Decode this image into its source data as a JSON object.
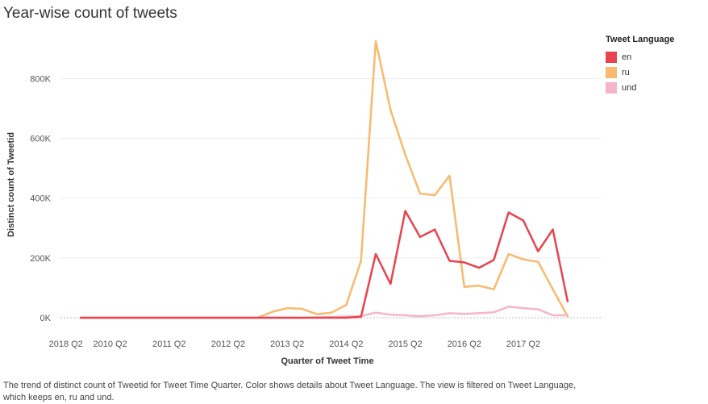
{
  "title": "Year-wise count of tweets",
  "caption": "The trend of distinct count of Tweetid for Tweet Time Quarter.  Color shows details about Tweet Language. The view is filtered on Tweet Language, which keeps en, ru and und.",
  "legend": {
    "title": "Tweet Language",
    "items": [
      {
        "label": "en",
        "color": "#e8434f"
      },
      {
        "label": "ru",
        "color": "#f9b96e"
      },
      {
        "label": "und",
        "color": "#f6b4cb"
      }
    ]
  },
  "chart_data": {
    "type": "line",
    "title": "Year-wise count of tweets",
    "xlabel": "Quarter of Tweet Time",
    "ylabel": "Distinct count of Tweetid",
    "x_tick_labels": [
      "2010 Q2",
      "2011 Q2",
      "2012 Q2",
      "2013 Q2",
      "2014 Q2",
      "2015 Q2",
      "2016 Q2",
      "2017 Q2",
      "2018 Q2"
    ],
    "y_tick_labels": [
      "0K",
      "200K",
      "400K",
      "600K",
      "800K"
    ],
    "ylim": [
      0,
      960000
    ],
    "grid": true,
    "legend_position": "top-right",
    "x": [
      "2009 Q4",
      "2010 Q1",
      "2010 Q2",
      "2010 Q3",
      "2010 Q4",
      "2011 Q1",
      "2011 Q2",
      "2011 Q3",
      "2011 Q4",
      "2012 Q1",
      "2012 Q2",
      "2012 Q3",
      "2012 Q4",
      "2013 Q1",
      "2013 Q2",
      "2013 Q3",
      "2013 Q4",
      "2014 Q1",
      "2014 Q2",
      "2014 Q3",
      "2014 Q4",
      "2015 Q1",
      "2015 Q2",
      "2015 Q3",
      "2015 Q4",
      "2016 Q1",
      "2016 Q2",
      "2016 Q3",
      "2016 Q4",
      "2017 Q1",
      "2017 Q2",
      "2017 Q3",
      "2017 Q4",
      "2018 Q1"
    ],
    "series": [
      {
        "name": "ru",
        "color": "#f9b96e",
        "values": [
          0,
          0,
          0,
          0,
          0,
          0,
          0,
          0,
          0,
          0,
          0,
          0,
          0,
          20000,
          32000,
          30000,
          12000,
          17000,
          43000,
          190000,
          925000,
          695000,
          545000,
          415000,
          410000,
          475000,
          103000,
          107000,
          95000,
          213000,
          195000,
          187000,
          95000,
          5000
        ]
      },
      {
        "name": "und",
        "color": "#f6b4cb",
        "values": [
          0,
          0,
          0,
          0,
          0,
          0,
          0,
          0,
          0,
          0,
          0,
          0,
          0,
          0,
          0,
          0,
          1000,
          2000,
          4000,
          5000,
          17000,
          10000,
          8000,
          5000,
          8000,
          15000,
          13000,
          15000,
          18000,
          37000,
          32000,
          28000,
          8000,
          8000
        ]
      },
      {
        "name": "en",
        "color": "#e8434f",
        "values": [
          0,
          0,
          0,
          0,
          0,
          0,
          0,
          0,
          0,
          0,
          0,
          0,
          0,
          0,
          0,
          0,
          0,
          0,
          0,
          3000,
          213000,
          113000,
          357000,
          270000,
          295000,
          190000,
          185000,
          167000,
          193000,
          352000,
          325000,
          222000,
          295000,
          55000
        ]
      }
    ]
  }
}
